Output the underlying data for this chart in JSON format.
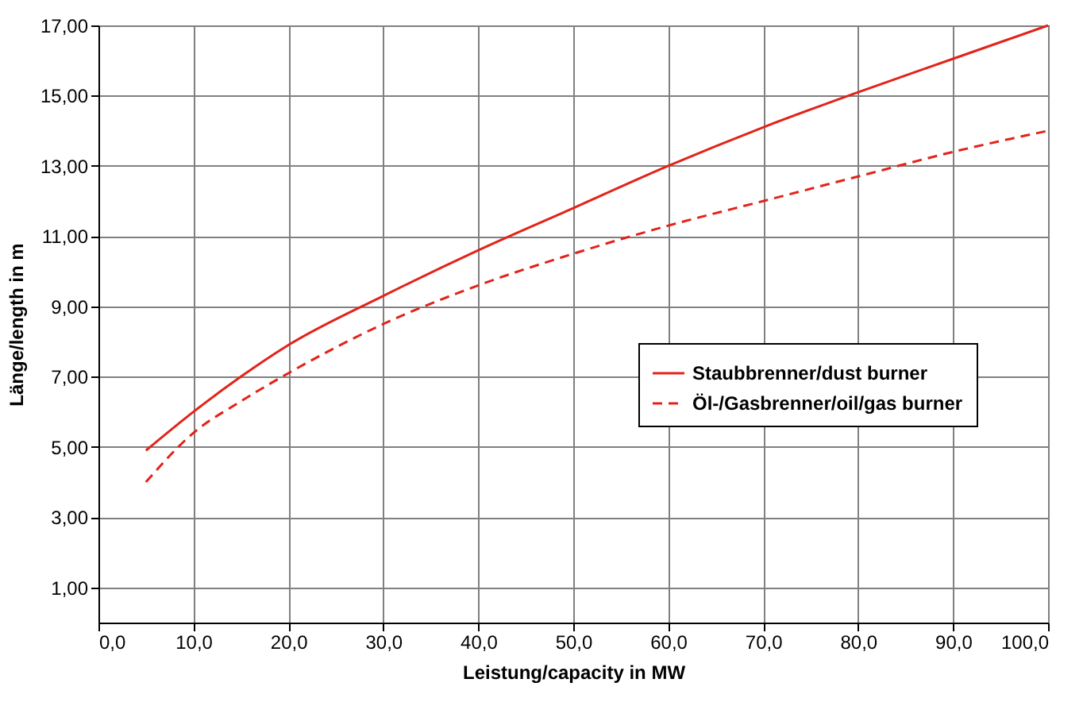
{
  "chart_data": {
    "type": "line",
    "xlabel": "Leistung/capacity in MW",
    "ylabel": "Länge/length in m",
    "xlim": [
      0,
      100
    ],
    "xticks": [
      {
        "value": 0,
        "label": "0,0"
      },
      {
        "value": 10,
        "label": "10,0"
      },
      {
        "value": 20,
        "label": "20,0"
      },
      {
        "value": 30,
        "label": "30,0"
      },
      {
        "value": 40,
        "label": "40,0"
      },
      {
        "value": 50,
        "label": "50,0"
      },
      {
        "value": 60,
        "label": "60,0"
      },
      {
        "value": 70,
        "label": "70,0"
      },
      {
        "value": 80,
        "label": "80,0"
      },
      {
        "value": 90,
        "label": "90,0"
      },
      {
        "value": 100,
        "label": "100,0"
      }
    ],
    "ylim": [
      0,
      17
    ],
    "yticks": [
      {
        "value": 1,
        "label": "1,00"
      },
      {
        "value": 3,
        "label": "3,00"
      },
      {
        "value": 5,
        "label": "5,00"
      },
      {
        "value": 7,
        "label": "7,00"
      },
      {
        "value": 9,
        "label": "9,00"
      },
      {
        "value": 11,
        "label": "11,00"
      },
      {
        "value": 13,
        "label": "13,00"
      },
      {
        "value": 15,
        "label": "15,00"
      },
      {
        "value": 17,
        "label": "17,00"
      }
    ],
    "x": [
      5,
      10,
      15,
      20,
      30,
      40,
      50,
      60,
      70,
      80,
      90,
      100
    ],
    "series": [
      {
        "name": "Staubbrenner/dust burner",
        "color": "#e2231a",
        "line_style": "solid",
        "values": [
          4.9,
          6.0,
          7.0,
          7.9,
          9.3,
          10.6,
          11.8,
          13.0,
          14.1,
          15.1,
          16.05,
          17.0
        ]
      },
      {
        "name": "Öl-/Gasbrenner/oil/gas burner",
        "color": "#e2231a",
        "line_style": "dashed",
        "values": [
          4.0,
          5.4,
          6.3,
          7.1,
          8.5,
          9.6,
          10.5,
          11.3,
          12.0,
          12.7,
          13.4,
          14.0
        ]
      }
    ],
    "grid": true,
    "legend": "right",
    "marker": "none"
  }
}
